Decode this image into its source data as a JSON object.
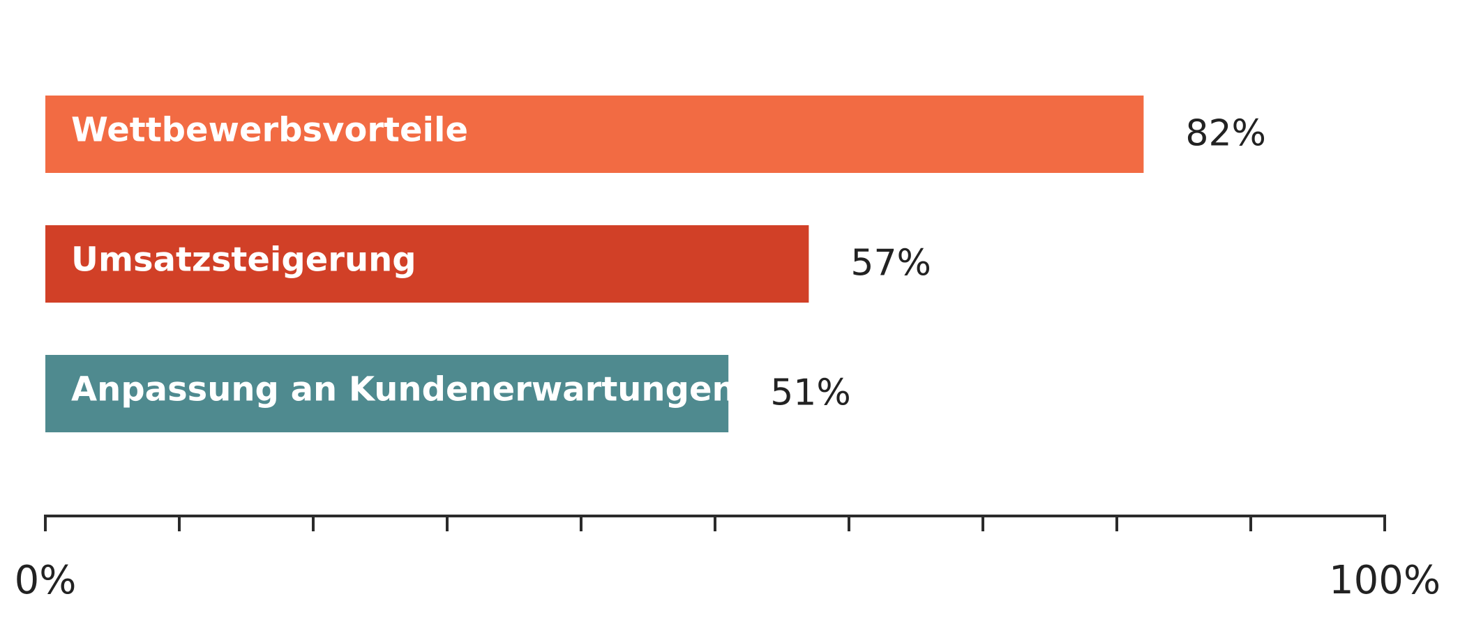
{
  "chart_data": {
    "type": "bar",
    "orientation": "horizontal",
    "categories": [
      "Wettbewerbsvorteile",
      "Umsatzsteigerung",
      "Anpassung an Kundenerwartungen"
    ],
    "values": [
      82,
      57,
      51
    ],
    "value_labels": [
      "82%",
      "57%",
      "51%"
    ],
    "colors": [
      "#f26b43",
      "#d14027",
      "#4f8a8f"
    ],
    "xlim": [
      0,
      100
    ],
    "xticks": [
      {
        "value": 0,
        "label": "0%"
      },
      10,
      20,
      30,
      40,
      50,
      60,
      70,
      80,
      90,
      {
        "value": 100,
        "label": "100%"
      }
    ]
  }
}
